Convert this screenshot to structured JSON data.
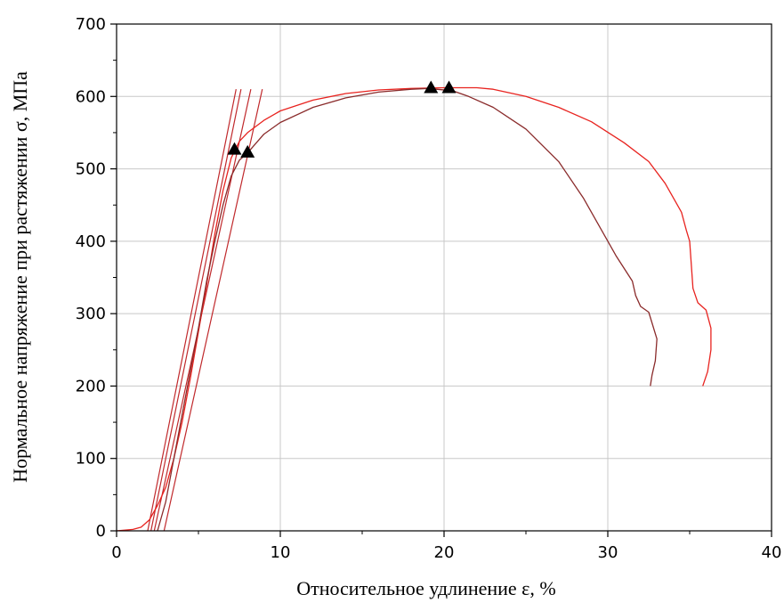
{
  "chart_data": {
    "type": "line",
    "title": "",
    "xlabel": "Относительное удлинение ε, %",
    "ylabel": "Нормальное напряжение при растяжении σ, МПа",
    "xlim": [
      0,
      40
    ],
    "ylim": [
      0,
      700
    ],
    "xticks": [
      "0",
      "10",
      "20",
      "30",
      "40"
    ],
    "yticks": [
      "0",
      "100",
      "200",
      "300",
      "400",
      "500",
      "600",
      "700"
    ],
    "grid": true,
    "colors": {
      "curve1": "#e8231f",
      "curve2": "#8a2b2b",
      "fitline": "#c0292c",
      "marker": "#000000",
      "grid": "#c8c8c8"
    },
    "series": [
      {
        "values": [
          [
            0,
            0
          ],
          [
            1,
            2
          ],
          [
            1.5,
            5
          ],
          [
            2,
            15
          ],
          [
            2.5,
            35
          ],
          [
            3,
            60
          ],
          [
            3.5,
            100
          ],
          [
            4,
            150
          ],
          [
            4.5,
            210
          ],
          [
            5,
            275
          ],
          [
            5.5,
            340
          ],
          [
            6,
            410
          ],
          [
            6.5,
            470
          ],
          [
            7,
            515
          ],
          [
            7.5,
            538
          ],
          [
            8,
            550
          ],
          [
            9,
            567
          ],
          [
            10,
            580
          ],
          [
            12,
            595
          ],
          [
            14,
            604
          ],
          [
            16,
            609
          ],
          [
            18,
            611
          ],
          [
            20,
            612
          ],
          [
            22,
            612
          ],
          [
            23,
            610
          ],
          [
            25,
            600
          ],
          [
            27,
            585
          ],
          [
            29,
            565
          ],
          [
            31,
            536
          ],
          [
            32.5,
            510
          ],
          [
            33.5,
            480
          ],
          [
            34.5,
            440
          ],
          [
            34.8,
            415
          ],
          [
            35,
            400
          ],
          [
            35.2,
            335
          ],
          [
            35.5,
            315
          ],
          [
            36,
            305
          ],
          [
            36.3,
            280
          ],
          [
            36.3,
            250
          ],
          [
            36.1,
            220
          ],
          [
            35.8,
            200
          ]
        ]
      },
      {
        "values": [
          [
            2.5,
            0
          ],
          [
            3,
            40
          ],
          [
            3.5,
            100
          ],
          [
            4,
            160
          ],
          [
            4.5,
            220
          ],
          [
            5,
            280
          ],
          [
            5.5,
            345
          ],
          [
            6,
            400
          ],
          [
            6.5,
            450
          ],
          [
            7,
            490
          ],
          [
            7.5,
            512
          ],
          [
            8,
            522
          ],
          [
            8.5,
            535
          ],
          [
            9,
            548
          ],
          [
            10,
            564
          ],
          [
            12,
            585
          ],
          [
            14,
            598
          ],
          [
            16,
            606
          ],
          [
            18,
            610
          ],
          [
            19,
            611
          ],
          [
            20.5,
            608
          ],
          [
            21.5,
            600
          ],
          [
            23,
            585
          ],
          [
            25,
            555
          ],
          [
            27,
            510
          ],
          [
            28.5,
            460
          ],
          [
            29.5,
            420
          ],
          [
            30.5,
            380
          ],
          [
            31.5,
            345
          ],
          [
            31.7,
            325
          ],
          [
            32,
            310
          ],
          [
            32.5,
            302
          ],
          [
            33,
            265
          ],
          [
            32.9,
            235
          ],
          [
            32.7,
            215
          ],
          [
            32.6,
            200
          ]
        ]
      }
    ],
    "fit_lines": [
      {
        "values": [
          [
            1.9,
            0
          ],
          [
            7.3,
            610
          ]
        ]
      },
      {
        "values": [
          [
            2.1,
            0
          ],
          [
            7.6,
            610
          ]
        ]
      },
      {
        "values": [
          [
            2.3,
            0
          ],
          [
            8.2,
            610
          ]
        ]
      },
      {
        "values": [
          [
            2.9,
            0
          ],
          [
            8.9,
            610
          ]
        ]
      }
    ],
    "markers": [
      {
        "x": 7.2,
        "y": 527
      },
      {
        "x": 8.0,
        "y": 523
      },
      {
        "x": 19.2,
        "y": 612
      },
      {
        "x": 20.3,
        "y": 612
      }
    ]
  }
}
